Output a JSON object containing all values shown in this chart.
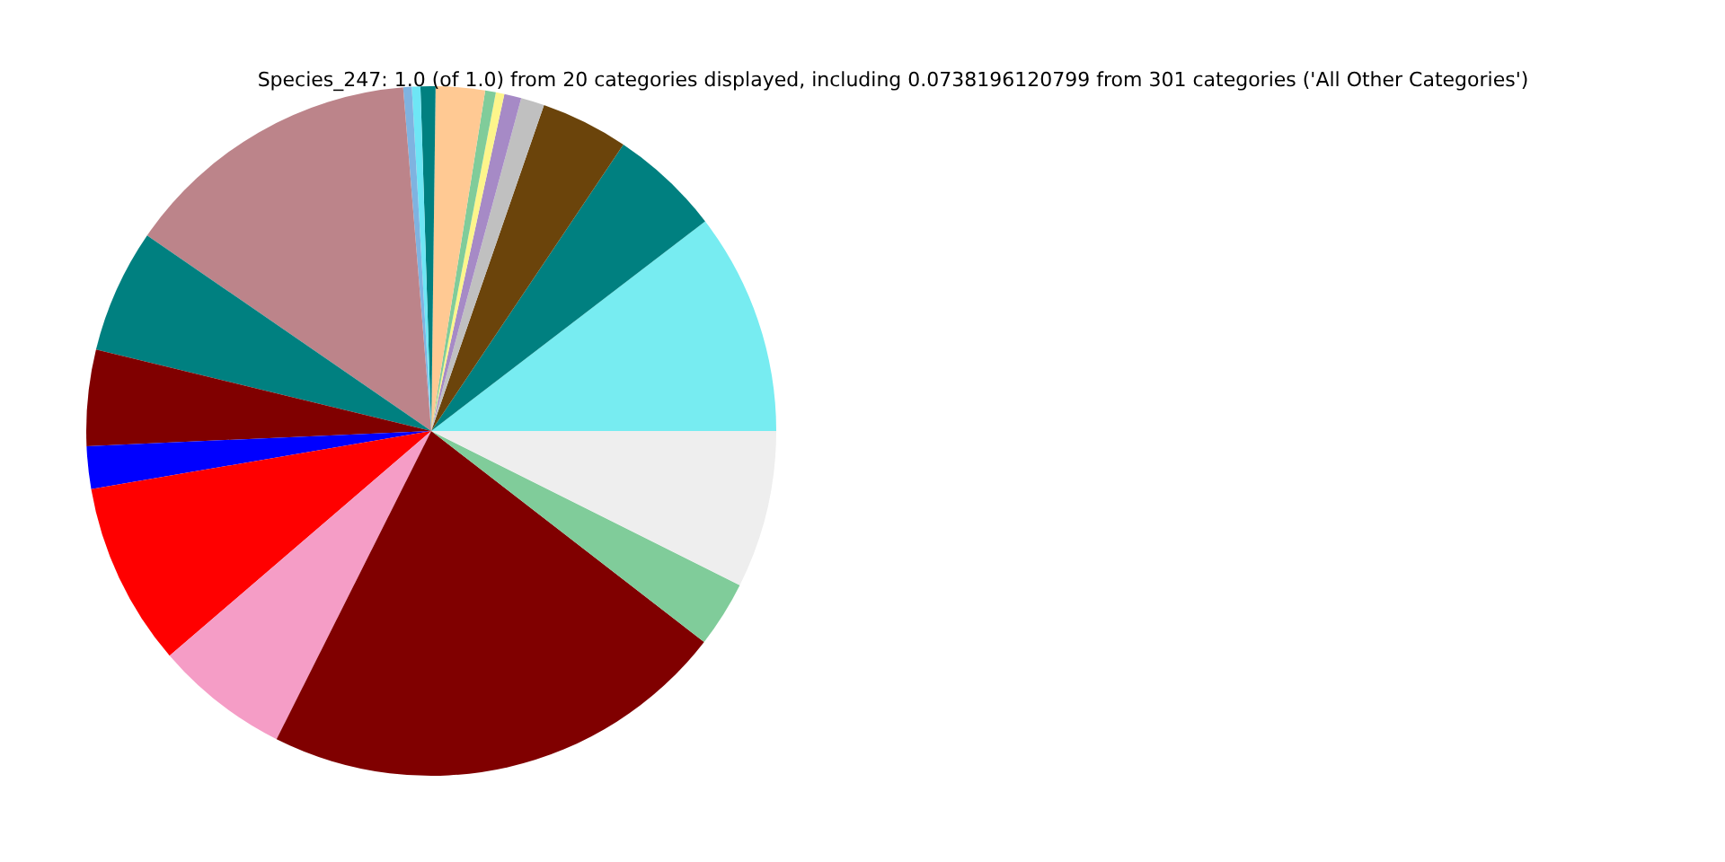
{
  "chart_data": {
    "type": "pie",
    "title": "Species_247: 1.0 (of 1.0) from 20 categories displayed, including 0.0738196120799 from 301 categories ('All Other Categories')",
    "categories": [
      null,
      null,
      null,
      null,
      null,
      null,
      null,
      null,
      null,
      null,
      null,
      null,
      null,
      null,
      null,
      null,
      null,
      null,
      null,
      null
    ],
    "values": [
      10.4,
      5.2,
      4.1,
      1.1,
      0.8,
      0.4,
      0.5,
      2.3,
      0.7,
      0.4,
      0.4,
      14.1,
      5.8,
      4.5,
      2.0,
      8.6,
      6.3,
      21.92,
      3.1,
      7.38
    ],
    "colors": [
      "#77ecf1",
      "#008080",
      "#6b440b",
      "#c0c0c0",
      "#a68ac6",
      "#fdf58b",
      "#80cc9a",
      "#ffc993",
      "#008080",
      "#6ee6f5",
      "#7fb3e0",
      "#bc848a",
      "#008080",
      "#800000",
      "#0000ff",
      "#ff0000",
      "#f59dc6",
      "#800000",
      "#80cc9a",
      "#eeeeee"
    ]
  }
}
